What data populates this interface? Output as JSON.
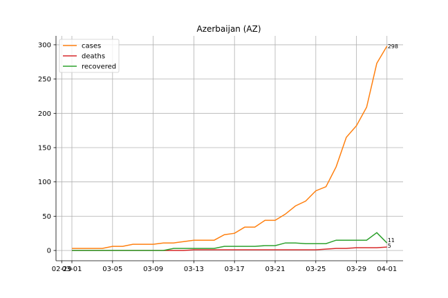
{
  "chart_data": {
    "type": "line",
    "title": "Azerbaijan (AZ)",
    "xlabel": "",
    "ylabel": "",
    "x_tick_labels": [
      "02-29",
      "03-01",
      "03-05",
      "03-09",
      "03-13",
      "03-17",
      "03-21",
      "03-25",
      "03-29",
      "04-01"
    ],
    "y_ticks": [
      0,
      50,
      100,
      150,
      200,
      250,
      300
    ],
    "ylim": [
      -15,
      313
    ],
    "grid": true,
    "legend_position": "upper-left",
    "x": [
      "03-01",
      "03-02",
      "03-03",
      "03-04",
      "03-05",
      "03-06",
      "03-07",
      "03-08",
      "03-09",
      "03-10",
      "03-11",
      "03-12",
      "03-13",
      "03-14",
      "03-15",
      "03-16",
      "03-17",
      "03-18",
      "03-19",
      "03-20",
      "03-21",
      "03-22",
      "03-23",
      "03-24",
      "03-25",
      "03-26",
      "03-27",
      "03-28",
      "03-29",
      "03-30",
      "03-31",
      "04-01"
    ],
    "series": [
      {
        "name": "cases",
        "color": "#ff7f0e",
        "end_label": "298",
        "values": [
          3,
          3,
          3,
          3,
          6,
          6,
          9,
          9,
          9,
          11,
          11,
          13,
          15,
          15,
          15,
          23,
          25,
          34,
          34,
          44,
          44,
          53,
          65,
          72,
          87,
          93,
          122,
          165,
          182,
          209,
          273,
          298
        ]
      },
      {
        "name": "deaths",
        "color": "#d62728",
        "end_label": "5",
        "values": [
          0,
          0,
          0,
          0,
          0,
          0,
          0,
          0,
          0,
          0,
          0,
          0,
          1,
          1,
          1,
          1,
          1,
          1,
          1,
          1,
          1,
          1,
          1,
          1,
          1,
          2,
          3,
          3,
          4,
          4,
          4,
          5
        ]
      },
      {
        "name": "recovered",
        "color": "#2ca02c",
        "end_label": "11",
        "values": [
          0,
          0,
          0,
          0,
          0,
          0,
          0,
          0,
          0,
          0,
          3,
          3,
          3,
          3,
          3,
          6,
          6,
          6,
          6,
          7,
          7,
          11,
          11,
          10,
          10,
          10,
          15,
          15,
          15,
          15,
          26,
          11
        ]
      }
    ]
  }
}
